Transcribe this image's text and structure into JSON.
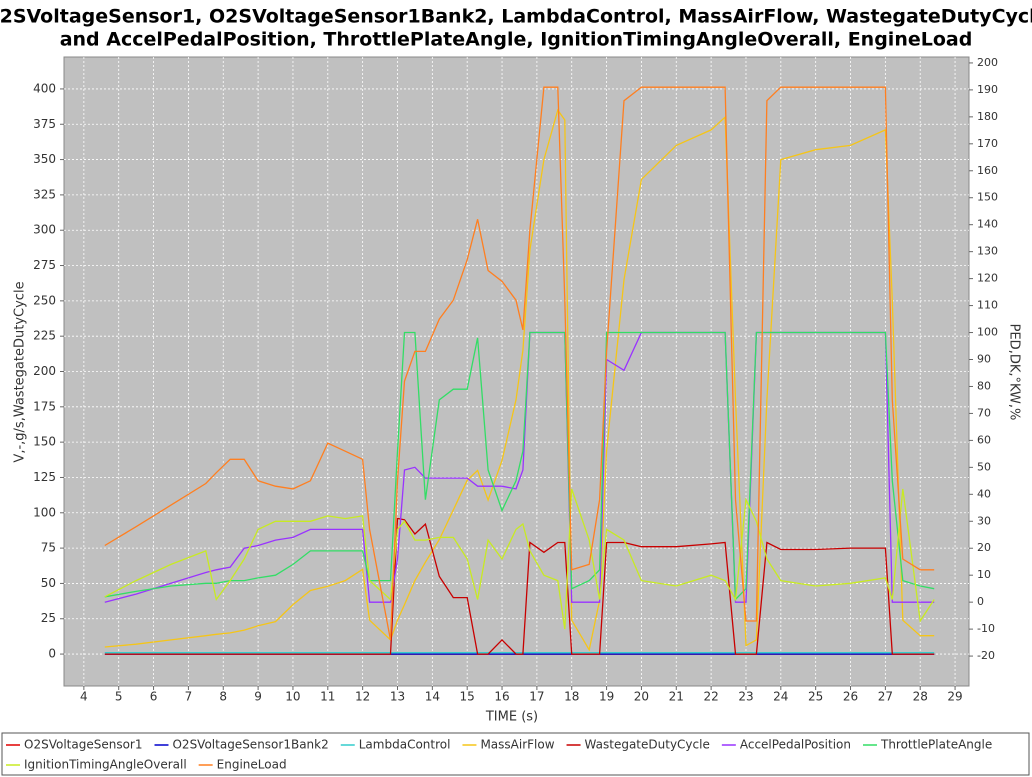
{
  "chart_data": {
    "type": "line",
    "title": [
      "O2SVoltageSensor1, O2SVoltageSensor1Bank2, LambdaControl, MassAirFlow, WastegateDutyCycle",
      "and AccelPedalPosition, ThrottlePlateAngle, IgnitionTimingAngleOverall, EngineLoad"
    ],
    "x_label": "TIME (s)",
    "y_label": "V,-,g/s,WastegateDutyCycle",
    "y2_label": "PED,DK,°KW,%",
    "xlim": [
      3.43,
      29.4
    ],
    "ylim": [
      -22.6,
      422.6
    ],
    "y2lim": [
      -31.1,
      202.2
    ],
    "xticks": [
      4,
      5,
      6,
      7,
      8,
      9,
      10,
      11,
      12,
      13,
      14,
      15,
      16,
      17,
      18,
      19,
      20,
      21,
      22,
      23,
      24,
      25,
      26,
      27,
      28,
      29
    ],
    "yticks": [
      0,
      25,
      50,
      75,
      100,
      125,
      150,
      175,
      200,
      225,
      250,
      275,
      300,
      325,
      350,
      375,
      400
    ],
    "y2ticks": [
      -20,
      -10,
      0,
      10,
      20,
      30,
      40,
      50,
      60,
      70,
      80,
      90,
      100,
      110,
      120,
      130,
      140,
      150,
      160,
      170,
      180,
      190,
      200
    ],
    "grid": true,
    "x": [
      4.6,
      5.5,
      6.5,
      7.5,
      7.8,
      8.2,
      8.6,
      9.0,
      9.5,
      10.0,
      10.5,
      11.0,
      11.5,
      12.0,
      12.2,
      12.8,
      13.0,
      13.2,
      13.5,
      13.8,
      14.2,
      14.6,
      15.0,
      15.3,
      15.6,
      16.0,
      16.4,
      16.6,
      16.8,
      17.2,
      17.6,
      17.8,
      18.0,
      18.5,
      18.8,
      19.0,
      19.5,
      20.0,
      21.0,
      22.0,
      22.4,
      22.7,
      23.0,
      23.3,
      23.6,
      24.0,
      25.0,
      26.0,
      27.0,
      27.2,
      27.5,
      28.0,
      28.4
    ],
    "series": [
      {
        "name": "O2SVoltageSensor1",
        "color": "#e00000",
        "values": [
          0,
          0,
          0,
          0,
          0,
          0,
          0,
          0,
          0,
          0,
          0,
          0,
          0,
          0,
          0,
          0,
          0,
          0,
          0,
          0,
          0,
          0,
          0,
          0,
          0,
          0,
          0,
          0,
          0,
          0,
          0,
          0,
          0,
          0,
          0,
          0,
          0,
          0,
          0,
          0,
          0,
          0,
          0,
          0,
          0,
          0,
          0,
          0,
          0,
          0,
          0,
          0,
          0
        ]
      },
      {
        "name": "O2SVoltageSensor1Bank2",
        "color": "#0000cc",
        "values": [
          0,
          0,
          0,
          0,
          0,
          0,
          0,
          0,
          0,
          0,
          0,
          0,
          0,
          0,
          0,
          0,
          0,
          0,
          0,
          0,
          0,
          0,
          0,
          0,
          0,
          0,
          0,
          0,
          0,
          0,
          0,
          0,
          0,
          0,
          0,
          0,
          0,
          0,
          0,
          0,
          0,
          0,
          0,
          0,
          0,
          0,
          0,
          0,
          0,
          0,
          0,
          0,
          0
        ]
      },
      {
        "name": "LambdaControl",
        "color": "#33cccc",
        "values": [
          1,
          1,
          1,
          1,
          1,
          1,
          1,
          1,
          1,
          1,
          1,
          1,
          1,
          1,
          1,
          1,
          1,
          1,
          1,
          1,
          1,
          1,
          1,
          1,
          1,
          1,
          1,
          1,
          1,
          1,
          1,
          1,
          1,
          1,
          1,
          1,
          1,
          1,
          1,
          1,
          1,
          1,
          1,
          1,
          1,
          1,
          1,
          1,
          1,
          1,
          1,
          1,
          1
        ]
      },
      {
        "name": "MassAirFlow",
        "color": "#f5c518",
        "values": [
          5,
          7,
          10,
          13,
          14,
          15,
          17,
          20,
          23,
          35,
          45,
          48,
          52,
          60,
          24,
          10,
          24,
          35,
          52,
          65,
          81,
          102,
          123,
          130,
          109,
          137,
          180,
          215,
          286,
          350,
          385,
          378,
          24,
          3,
          38,
          144,
          265,
          336,
          360,
          371,
          380,
          180,
          6,
          10,
          180,
          350,
          357,
          360,
          371,
          250,
          24,
          13,
          13
        ]
      },
      {
        "name": "WastegateDutyCycle",
        "color": "#c80000",
        "values": [
          0,
          0,
          0,
          0,
          0,
          0,
          0,
          0,
          0,
          0,
          0,
          0,
          0,
          0,
          0,
          0,
          96,
          95,
          85,
          92,
          55,
          40,
          40,
          0,
          0,
          10,
          0,
          0,
          79,
          72,
          79,
          79,
          0,
          0,
          0,
          79,
          79,
          76,
          76,
          78,
          79,
          0,
          0,
          0,
          79,
          74,
          74,
          75,
          75,
          0,
          0,
          0,
          0
        ]
      },
      {
        "name": "AccelPedalPosition",
        "color": "#9933ff",
        "axis": "y2",
        "values": [
          0,
          3,
          7,
          11,
          12,
          13,
          20,
          21,
          23,
          24,
          27,
          27,
          27,
          27,
          0,
          0,
          16,
          49,
          50,
          46,
          46,
          46,
          46,
          43,
          43,
          43,
          42,
          49,
          100,
          100,
          100,
          100,
          0,
          0,
          0,
          90,
          86,
          100,
          100,
          100,
          100,
          0,
          0,
          100,
          100,
          100,
          100,
          100,
          100,
          0,
          0,
          0,
          0
        ]
      },
      {
        "name": "ThrottlePlateAngle",
        "color": "#33dd66",
        "axis": "y2",
        "values": [
          2,
          4,
          6,
          7,
          7,
          8,
          8,
          9,
          10,
          14,
          19,
          19,
          19,
          19,
          8,
          8,
          56,
          100,
          100,
          38,
          75,
          79,
          79,
          98,
          49,
          34,
          45,
          56,
          100,
          100,
          100,
          100,
          5,
          8,
          12,
          100,
          100,
          100,
          100,
          100,
          100,
          1,
          5,
          100,
          100,
          100,
          100,
          100,
          100,
          45,
          8,
          6,
          5
        ]
      },
      {
        "name": "IgnitionTimingAngleOverall",
        "color": "#c8ea22",
        "axis": "y2",
        "values": [
          2,
          8,
          14,
          19,
          1,
          8,
          16,
          27,
          30,
          30,
          30,
          32,
          31,
          32,
          8,
          1,
          27,
          30,
          23,
          23,
          24,
          24,
          16,
          1,
          23,
          16,
          27,
          29,
          19,
          10,
          8,
          -10,
          42,
          23,
          1,
          27,
          23,
          8,
          6,
          10,
          8,
          1,
          38,
          30,
          16,
          8,
          6,
          7,
          9,
          1,
          42,
          -7,
          1
        ]
      },
      {
        "name": "EngineLoad",
        "color": "#ff7f20",
        "axis": "y2",
        "values": [
          21,
          28,
          36,
          44,
          48,
          53,
          53,
          45,
          43,
          42,
          45,
          59,
          56,
          53,
          27,
          -14,
          45,
          82,
          93,
          93,
          105,
          112,
          127,
          142,
          123,
          119,
          112,
          101,
          138,
          191,
          191,
          112,
          12,
          14,
          38,
          93,
          186,
          191,
          191,
          191,
          191,
          38,
          -7,
          -7,
          186,
          191,
          191,
          191,
          191,
          75,
          16,
          12,
          12
        ]
      }
    ]
  }
}
